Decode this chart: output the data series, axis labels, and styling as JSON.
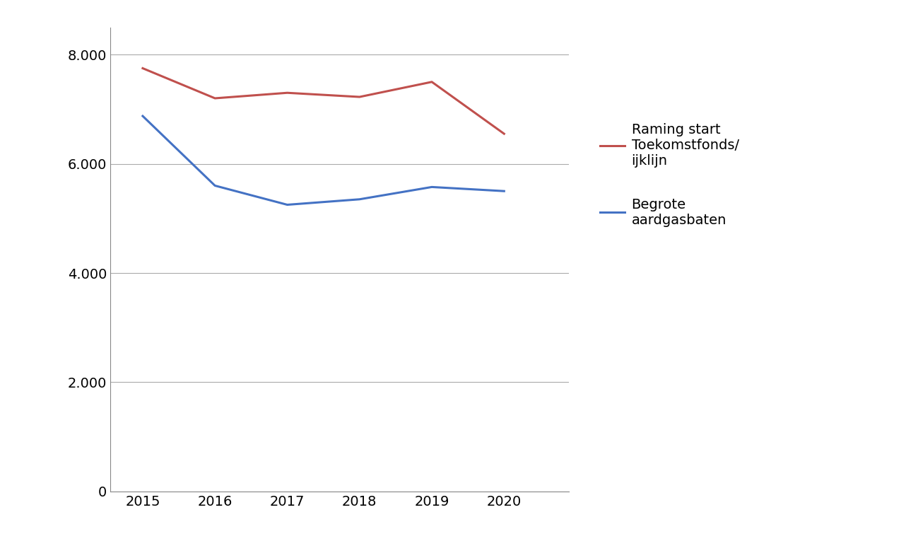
{
  "years": [
    2015,
    2016,
    2017,
    2018,
    2019,
    2020
  ],
  "raming": [
    7750,
    7200,
    7300,
    7225,
    7500,
    6550
  ],
  "begrote": [
    6875,
    5600,
    5250,
    5350,
    5575,
    5500
  ],
  "raming_color": "#c0504d",
  "begrote_color": "#4472c4",
  "ylim": [
    0,
    8500
  ],
  "yticks": [
    0,
    2000,
    4000,
    6000,
    8000
  ],
  "ytick_labels": [
    "0",
    "2.000",
    "4.000",
    "6.000",
    "8.000"
  ],
  "legend_raming": "Raming start\nToekomstfonds/\nijklijn",
  "legend_begrote": "Begrote\naardgasbaten",
  "background_color": "#ffffff",
  "line_width": 2.2,
  "grid_color": "#aaaaaa",
  "spine_color": "#888888",
  "tick_fontsize": 14,
  "legend_fontsize": 14
}
